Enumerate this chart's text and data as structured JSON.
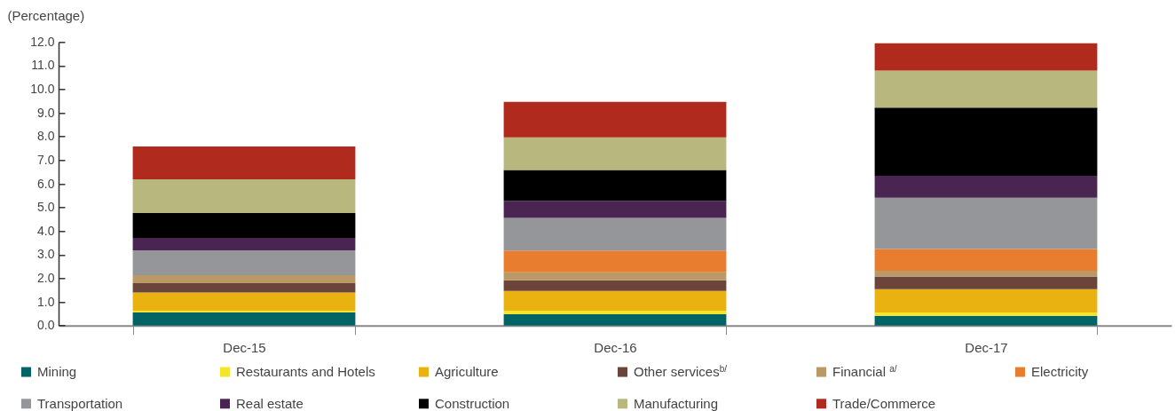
{
  "chart_data": {
    "type": "bar",
    "ylabel": "(Percentage)",
    "categories": [
      "Dec-15",
      "Dec-16",
      "Dec-17"
    ],
    "stacked": true,
    "series": [
      {
        "name": "Mining",
        "color": "#006466",
        "values": [
          0.55,
          0.48,
          0.41
        ]
      },
      {
        "name": "Restaurants and Hotels",
        "color": "#f2e52a",
        "values": [
          0.07,
          0.15,
          0.14
        ]
      },
      {
        "name": "Agriculture",
        "color": "#eab210",
        "values": [
          0.78,
          0.83,
          0.99
        ]
      },
      {
        "name": "Other services$^{b/}$",
        "color": "#6b4539",
        "values": [
          0.39,
          0.45,
          0.53
        ]
      },
      {
        "name": "Financial $^{a/}$",
        "color": "#bb9966",
        "values": [
          0.34,
          0.34,
          0.25
        ]
      },
      {
        "name": "Electricity",
        "color": "#e87d30",
        "values": [
          null,
          0.92,
          0.92
        ]
      },
      {
        "name": "Transportation",
        "color": "#959699",
        "values": [
          1.05,
          1.38,
          2.17
        ]
      },
      {
        "name": "Real estate",
        "color": "#4a2552",
        "values": [
          0.53,
          0.73,
          0.93
        ]
      },
      {
        "name": "Construction",
        "color": "#000000",
        "values": [
          1.05,
          1.3,
          2.88
        ]
      },
      {
        "name": "Manufacturing",
        "color": "#b8b87e",
        "values": [
          1.43,
          1.38,
          1.57
        ]
      },
      {
        "name": "Trade/Commerce",
        "color": "#b02a1e",
        "values": [
          1.39,
          1.51,
          1.16
        ]
      }
    ],
    "ylim": [
      0,
      12
    ],
    "yticks": [
      {
        "value": 0,
        "label": "0.0"
      },
      {
        "value": 1,
        "label": "1.0"
      },
      {
        "value": 2,
        "label": "2.0"
      },
      {
        "value": 3,
        "label": "3.0"
      },
      {
        "value": 4,
        "label": "4.0"
      },
      {
        "value": 5,
        "label": "5.0"
      },
      {
        "value": 6,
        "label": "6.0"
      },
      {
        "value": 7,
        "label": "7.0"
      },
      {
        "value": 8,
        "label": "8.0"
      },
      {
        "value": 9,
        "label": "9.0"
      },
      {
        "value": 10,
        "label": "10.0"
      },
      {
        "value": 11,
        "label": "11.0"
      },
      {
        "value": 12,
        "label": "12.0"
      }
    ],
    "legend": "bottom"
  }
}
